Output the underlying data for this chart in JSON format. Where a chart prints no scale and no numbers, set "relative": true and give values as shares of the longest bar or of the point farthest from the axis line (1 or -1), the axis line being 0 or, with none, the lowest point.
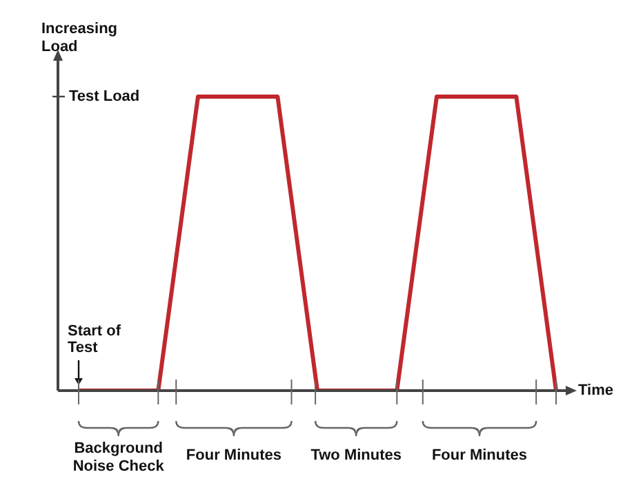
{
  "chart_data": {
    "type": "line",
    "relative": true,
    "xlabel": "Time",
    "ylabel": "Increasing Load",
    "categories": [
      null,
      null,
      null,
      null,
      null,
      null,
      null,
      null,
      null,
      null,
      null,
      null,
      null
    ],
    "series": [
      {
        "color": "#c0282d",
        "values": [
          0,
          0,
          0,
          1,
          1,
          1,
          0,
          0,
          0,
          1,
          1,
          1,
          0
        ]
      }
    ],
    "marker": "none",
    "line_style": "solid",
    "annotations": [
      "Test Load",
      "Start of Test",
      "Background Noise Check",
      "Four Minutes",
      "Two Minutes",
      "Four Minutes"
    ]
  }
}
